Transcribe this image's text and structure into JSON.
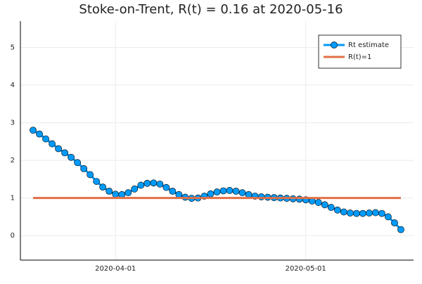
{
  "chart_data": {
    "type": "line",
    "title": "Stoke-on-Trent, R(t) = 0.16 at 2020-05-16",
    "series": [
      {
        "name": "Rt estimate",
        "color": "#009af9",
        "markers": true,
        "x": [
          "2020-03-19",
          "2020-03-20",
          "2020-03-21",
          "2020-03-22",
          "2020-03-23",
          "2020-03-24",
          "2020-03-25",
          "2020-03-26",
          "2020-03-27",
          "2020-03-28",
          "2020-03-29",
          "2020-03-30",
          "2020-03-31",
          "2020-04-01",
          "2020-04-02",
          "2020-04-03",
          "2020-04-04",
          "2020-04-05",
          "2020-04-06",
          "2020-04-07",
          "2020-04-08",
          "2020-04-09",
          "2020-04-10",
          "2020-04-11",
          "2020-04-12",
          "2020-04-13",
          "2020-04-14",
          "2020-04-15",
          "2020-04-16",
          "2020-04-17",
          "2020-04-18",
          "2020-04-19",
          "2020-04-20",
          "2020-04-21",
          "2020-04-22",
          "2020-04-23",
          "2020-04-24",
          "2020-04-25",
          "2020-04-26",
          "2020-04-27",
          "2020-04-28",
          "2020-04-29",
          "2020-04-30",
          "2020-05-01",
          "2020-05-02",
          "2020-05-03",
          "2020-05-04",
          "2020-05-05",
          "2020-05-06",
          "2020-05-07",
          "2020-05-08",
          "2020-05-09",
          "2020-05-10",
          "2020-05-11",
          "2020-05-12",
          "2020-05-13",
          "2020-05-14",
          "2020-05-15",
          "2020-05-16"
        ],
        "values": [
          2.8,
          2.7,
          2.57,
          2.44,
          2.31,
          2.2,
          2.08,
          1.94,
          1.78,
          1.62,
          1.44,
          1.29,
          1.18,
          1.1,
          1.09,
          1.14,
          1.24,
          1.34,
          1.39,
          1.4,
          1.37,
          1.28,
          1.18,
          1.09,
          1.02,
          0.99,
          1.0,
          1.05,
          1.11,
          1.16,
          1.19,
          1.2,
          1.18,
          1.14,
          1.09,
          1.05,
          1.03,
          1.02,
          1.01,
          1.0,
          0.99,
          0.98,
          0.97,
          0.95,
          0.92,
          0.88,
          0.82,
          0.75,
          0.68,
          0.63,
          0.6,
          0.59,
          0.59,
          0.6,
          0.61,
          0.59,
          0.5,
          0.34,
          0.16
        ]
      },
      {
        "name": "R(t)=1",
        "color": "#e26f46",
        "markers": false,
        "x": [
          "2020-03-19",
          "2020-05-16"
        ],
        "values": [
          1,
          1
        ]
      }
    ],
    "xlim": [
      "2020-03-17",
      "2020-05-18"
    ],
    "xticks": [
      "2020-04-01",
      "2020-05-01"
    ],
    "ylim": [
      -0.65,
      5.7
    ],
    "yticks": [
      0,
      1,
      2,
      3,
      4,
      5
    ],
    "grid": true,
    "legend": "top-right"
  }
}
